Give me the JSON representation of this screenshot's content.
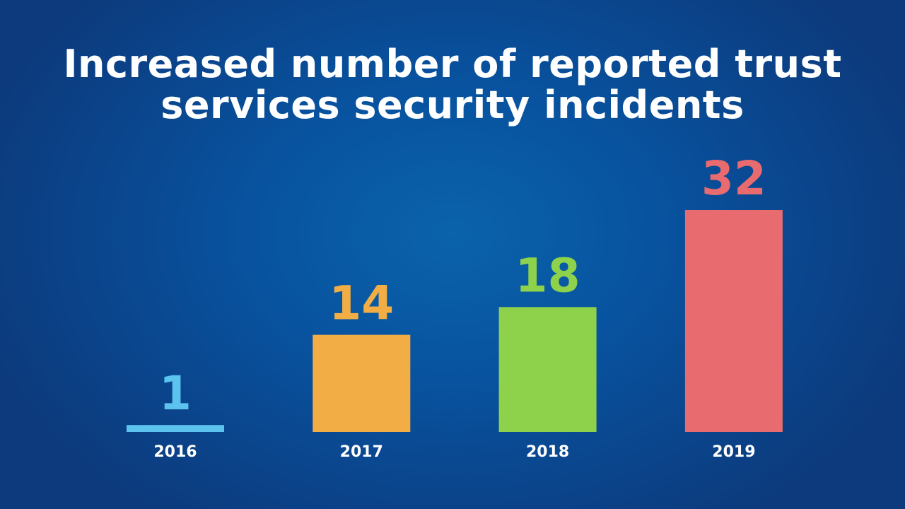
{
  "chart_data": {
    "type": "bar",
    "title_lines": [
      "Increased number of reported trust",
      "services security incidents"
    ],
    "categories": [
      "2016",
      "2017",
      "2018",
      "2019"
    ],
    "values": [
      1,
      14,
      18,
      32
    ],
    "colors": [
      "#5bc3ee",
      "#f2ae45",
      "#8ed24c",
      "#e76b6f"
    ],
    "xlabel": "",
    "ylabel": "",
    "ylim": [
      0,
      32
    ],
    "grid": false,
    "legend": "none"
  }
}
